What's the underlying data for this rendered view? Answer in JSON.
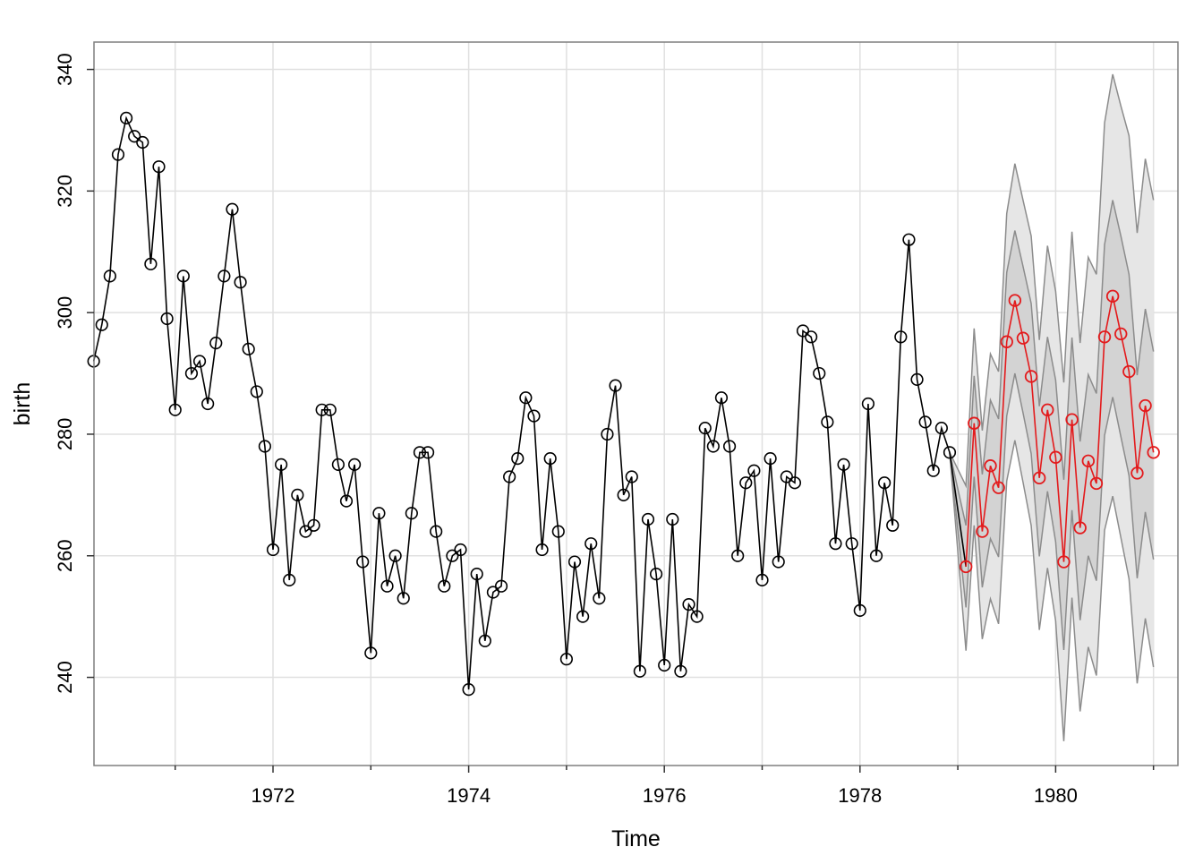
{
  "chart_data": {
    "type": "line",
    "title": "",
    "xlabel": "Time",
    "ylabel": "birth",
    "xlim": [
      1970.17,
      1981.25
    ],
    "ylim": [
      225.5,
      344.5
    ],
    "x_ticks": [
      1972,
      1974,
      1976,
      1978,
      1980
    ],
    "x_tick_labels": [
      "1972",
      "1974",
      "1976",
      "1978",
      "1980"
    ],
    "x_minor_ticks": [
      1971,
      1973,
      1975,
      1977,
      1979,
      1981
    ],
    "y_ticks": [
      240,
      260,
      280,
      300,
      320,
      340
    ],
    "y_tick_labels": [
      "240",
      "260",
      "280",
      "300",
      "320",
      "340"
    ],
    "grid": true,
    "observed": {
      "start": 1970.1667,
      "step": 0.0833333,
      "color": "#000000",
      "values": [
        292,
        298,
        306,
        326,
        332,
        329,
        328,
        308,
        324,
        299,
        284,
        306,
        290,
        292,
        285,
        295,
        306,
        317,
        305,
        294,
        287,
        278,
        261,
        275,
        256,
        270,
        264,
        265,
        284,
        284,
        275,
        269,
        275,
        259,
        244,
        267,
        255,
        260,
        253,
        267,
        277,
        277,
        264,
        255,
        260,
        261,
        238,
        257,
        246,
        254,
        255,
        273,
        276,
        286,
        283,
        261,
        276,
        264,
        243,
        259,
        250,
        262,
        253,
        280,
        288,
        270,
        273,
        241,
        266,
        257,
        242,
        266,
        241,
        252,
        250,
        281,
        278,
        286,
        278,
        260,
        272,
        274,
        256,
        276,
        259,
        273,
        272,
        297,
        296,
        290,
        282,
        262,
        275,
        262,
        251,
        285,
        260,
        272,
        265,
        296,
        312,
        289,
        282,
        274,
        281,
        277
      ]
    },
    "forecast": {
      "start": 1979.0833,
      "step": 0.0833333,
      "color": "#e31a1c",
      "values": [
        258.2,
        281.8,
        264.0,
        274.8,
        271.2,
        295.2,
        302.0,
        295.8,
        289.5,
        272.8,
        284.0,
        276.2,
        259.0,
        282.4,
        264.6,
        275.6,
        271.9,
        296.0,
        302.7,
        296.5,
        290.3,
        273.6,
        284.7,
        277.0
      ],
      "lo80": [
        251.5,
        273.0,
        254.8,
        262.8,
        259.8,
        283.0,
        290.0,
        283.5,
        276.8,
        259.9,
        270.6,
        262.3,
        244.5,
        267.5,
        249.4,
        260.0,
        255.9,
        279.8,
        286.1,
        279.6,
        273.2,
        256.3,
        267.2,
        259.4
      ],
      "hi80": [
        265.0,
        289.6,
        273.4,
        285.6,
        282.5,
        306.6,
        313.5,
        307.6,
        301.5,
        284.6,
        296.0,
        288.9,
        272.5,
        295.9,
        278.8,
        289.8,
        286.7,
        311.2,
        318.5,
        312.6,
        306.3,
        289.7,
        300.6,
        293.6
      ],
      "lo95": [
        244.4,
        265.0,
        246.3,
        252.9,
        248.8,
        272.3,
        279.0,
        272.1,
        265.0,
        247.8,
        258.0,
        249.3,
        229.5,
        253.1,
        234.4,
        245.0,
        240.3,
        264.2,
        269.8,
        263.0,
        256.2,
        239.0,
        249.7,
        241.7
      ],
      "hi95": [
        271.5,
        297.4,
        280.6,
        293.2,
        290.3,
        316.3,
        324.5,
        318.5,
        312.6,
        295.5,
        311.0,
        303.5,
        288.5,
        313.3,
        295.0,
        309.1,
        306.3,
        331.2,
        339.2,
        334.0,
        329.1,
        313.1,
        325.3,
        318.5
      ],
      "band_fill_80": "#d3d3d3",
      "band_fill_95": "#e6e6e6",
      "band_edge": "#8c8c8c"
    }
  }
}
